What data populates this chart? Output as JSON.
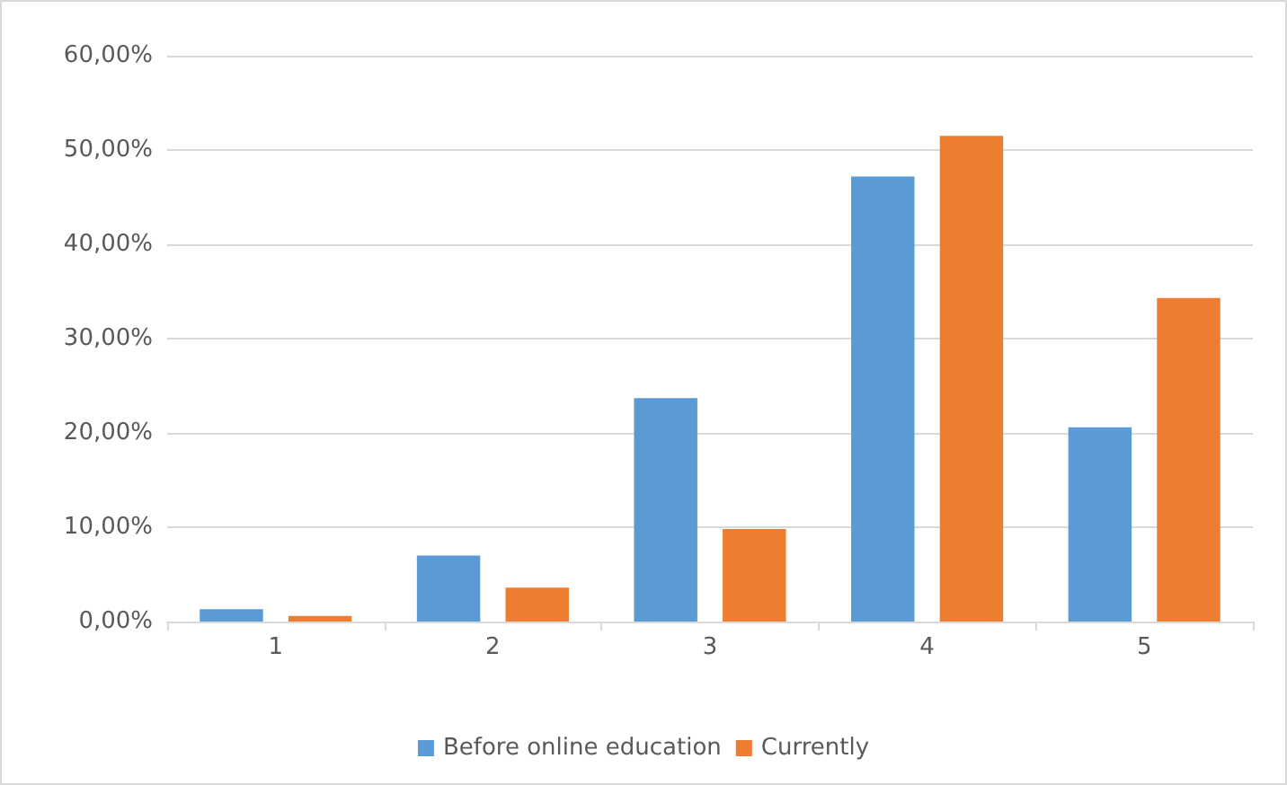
{
  "chart_data": {
    "type": "bar",
    "categories": [
      "1",
      "2",
      "3",
      "4",
      "5"
    ],
    "series": [
      {
        "name": "Before online education",
        "color": "#5b9bd5",
        "values": [
          1.3,
          7.0,
          23.7,
          47.2,
          20.6
        ]
      },
      {
        "name": "Currently",
        "color": "#ed7d31",
        "values": [
          0.6,
          3.6,
          9.8,
          51.5,
          34.3
        ]
      }
    ],
    "ylim": [
      0,
      60
    ],
    "yticks": [
      {
        "value": 0,
        "label": "0,00%"
      },
      {
        "value": 10,
        "label": "10,00%"
      },
      {
        "value": 20,
        "label": "20,00%"
      },
      {
        "value": 30,
        "label": "30,00%"
      },
      {
        "value": 40,
        "label": "40,00%"
      },
      {
        "value": 50,
        "label": "50,00%"
      },
      {
        "value": 60,
        "label": "60,00%"
      }
    ],
    "grid": "y",
    "legend": "bottom"
  }
}
